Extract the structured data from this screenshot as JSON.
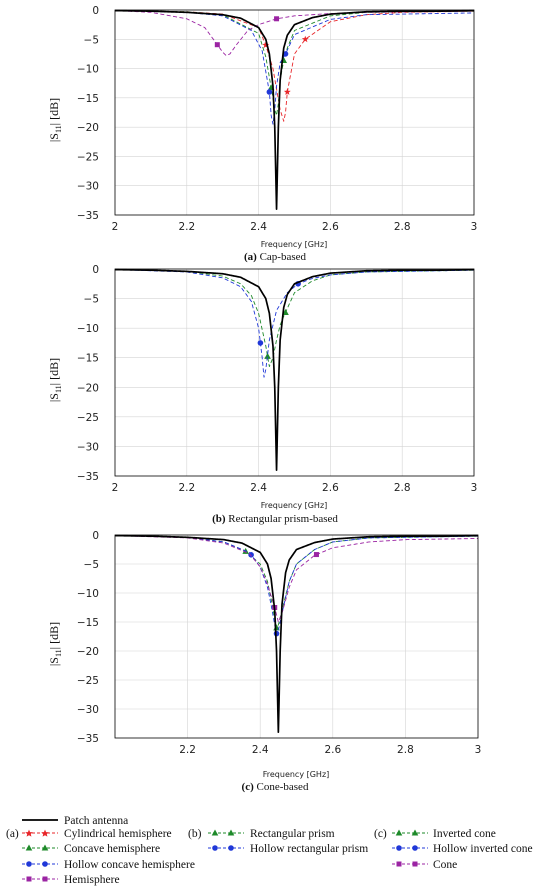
{
  "chart_data": [
    {
      "type": "line",
      "caption_letter": "(a)",
      "caption_text": "Cap-based",
      "xlabel": "Frequency [GHz]",
      "ylabel_base": "|S",
      "ylabel_sub": "11",
      "ylabel_tail": "| [dB]",
      "xlim": [
        2,
        3
      ],
      "ylim": [
        -35,
        0
      ],
      "xticks": [
        2,
        2.2,
        2.4,
        2.6,
        2.8,
        3
      ],
      "xtick_labels": [
        "2",
        "2.2",
        "2.4",
        "2.6",
        "2.8",
        "3"
      ],
      "yticks": [
        0,
        -5,
        -10,
        -15,
        -20,
        -25,
        -30,
        -35
      ],
      "ytick_labels": [
        "0",
        "−5",
        "−10",
        "−15",
        "−20",
        "−25",
        "−30",
        "−35"
      ],
      "grid": true,
      "series": [
        {
          "name": "Patch antenna",
          "color": "#000000",
          "style": "solid",
          "marker": "none",
          "x": [
            2,
            2.1,
            2.2,
            2.3,
            2.35,
            2.4,
            2.42,
            2.43,
            2.44,
            2.445,
            2.45,
            2.455,
            2.46,
            2.47,
            2.48,
            2.5,
            2.55,
            2.6,
            2.7,
            2.8,
            2.9,
            3
          ],
          "y": [
            -0.1,
            -0.2,
            -0.4,
            -0.8,
            -1.4,
            -3.0,
            -5.0,
            -7.5,
            -13.0,
            -20.0,
            -34.0,
            -20.0,
            -12.0,
            -6.5,
            -4.3,
            -2.5,
            -1.3,
            -0.7,
            -0.3,
            -0.2,
            -0.2,
            -0.1
          ]
        },
        {
          "name": "Cylindrical hemisphere",
          "color": "#e8262a",
          "style": "dashed",
          "marker": "star",
          "x": [
            2,
            2.2,
            2.3,
            2.4,
            2.42,
            2.44,
            2.45,
            2.46,
            2.47,
            2.475,
            2.48,
            2.5,
            2.53,
            2.6,
            2.7,
            2.8,
            3
          ],
          "y": [
            -0.1,
            -0.3,
            -0.7,
            -3.0,
            -6.0,
            -10.0,
            -13.5,
            -17.0,
            -19.0,
            -17.5,
            -14.0,
            -7.5,
            -5.0,
            -2.0,
            -0.8,
            -0.4,
            -0.2
          ],
          "marker_x": [
            2.42,
            2.48,
            2.53
          ]
        },
        {
          "name": "Concave hemisphere",
          "color": "#1e8a2a",
          "style": "dashed",
          "marker": "triangle",
          "x": [
            2,
            2.2,
            2.3,
            2.4,
            2.42,
            2.44,
            2.445,
            2.45,
            2.455,
            2.46,
            2.47,
            2.48,
            2.5,
            2.6,
            2.7,
            3
          ],
          "y": [
            -0.1,
            -0.3,
            -0.8,
            -4.0,
            -8.0,
            -15.0,
            -17.0,
            -18.0,
            -16.0,
            -12.0,
            -8.6,
            -6.5,
            -3.5,
            -1.0,
            -0.4,
            -0.2
          ],
          "marker_x": [
            2.435,
            2.47
          ]
        },
        {
          "name": "Hollow concave hemisphere",
          "color": "#2038d8",
          "style": "dashed",
          "marker": "circle",
          "x": [
            2,
            2.2,
            2.3,
            2.38,
            2.41,
            2.43,
            2.435,
            2.44,
            2.445,
            2.45,
            2.46,
            2.475,
            2.5,
            2.6,
            2.7,
            3
          ],
          "y": [
            -0.1,
            -0.4,
            -1.0,
            -3.5,
            -7.0,
            -14.0,
            -18.0,
            -19.5,
            -17.0,
            -13.0,
            -9.0,
            -7.5,
            -4.2,
            -1.6,
            -0.8,
            -0.5
          ],
          "marker_x": [
            2.43,
            2.475
          ]
        },
        {
          "name": "Hemisphere",
          "color": "#9b24a3",
          "style": "dashed",
          "marker": "square",
          "x": [
            2,
            2.1,
            2.2,
            2.25,
            2.28,
            2.3,
            2.31,
            2.32,
            2.34,
            2.37,
            2.4,
            2.45,
            2.5,
            2.6,
            2.7,
            3
          ],
          "y": [
            -0.1,
            -0.4,
            -1.5,
            -3.0,
            -5.5,
            -7.2,
            -7.8,
            -7.5,
            -5.8,
            -3.5,
            -2.5,
            -1.5,
            -1.0,
            -0.6,
            -0.4,
            -0.2
          ],
          "marker_x": [
            2.285,
            2.45
          ]
        }
      ]
    },
    {
      "type": "line",
      "caption_letter": "(b)",
      "caption_text": "Rectangular prism-based",
      "xlabel": "Frequency [GHz]",
      "ylabel_base": "|S",
      "ylabel_sub": "11",
      "ylabel_tail": "| [dB]",
      "xlim": [
        2,
        3
      ],
      "ylim": [
        -35,
        0
      ],
      "xticks": [
        2,
        2.2,
        2.4,
        2.6,
        2.8,
        3
      ],
      "xtick_labels": [
        "2",
        "2.2",
        "2.4",
        "2.6",
        "2.8",
        "3"
      ],
      "yticks": [
        0,
        -5,
        -10,
        -15,
        -20,
        -25,
        -30,
        -35
      ],
      "ytick_labels": [
        "0",
        "−5",
        "−10",
        "−15",
        "−20",
        "−25",
        "−30",
        "−35"
      ],
      "grid": true,
      "series": [
        {
          "name": "Patch antenna",
          "color": "#000000",
          "style": "solid",
          "marker": "none",
          "x": [
            2,
            2.1,
            2.2,
            2.3,
            2.35,
            2.4,
            2.42,
            2.43,
            2.44,
            2.445,
            2.45,
            2.455,
            2.46,
            2.47,
            2.48,
            2.5,
            2.55,
            2.6,
            2.7,
            2.8,
            2.9,
            3
          ],
          "y": [
            -0.1,
            -0.2,
            -0.4,
            -0.8,
            -1.4,
            -3.0,
            -5.0,
            -7.5,
            -13.0,
            -20.0,
            -34.0,
            -20.0,
            -12.0,
            -6.5,
            -4.3,
            -2.5,
            -1.3,
            -0.7,
            -0.3,
            -0.2,
            -0.2,
            -0.1
          ]
        },
        {
          "name": "Rectangular prism",
          "color": "#1e8a2a",
          "style": "dashed",
          "marker": "triangle",
          "x": [
            2,
            2.2,
            2.3,
            2.35,
            2.38,
            2.4,
            2.42,
            2.43,
            2.44,
            2.45,
            2.46,
            2.47,
            2.5,
            2.55,
            2.6,
            2.7,
            3
          ],
          "y": [
            -0.1,
            -0.4,
            -1.2,
            -2.5,
            -4.5,
            -7.5,
            -13.0,
            -16.5,
            -15.0,
            -12.0,
            -9.5,
            -8.0,
            -4.0,
            -2.0,
            -1.0,
            -0.5,
            -0.2
          ],
          "marker_x": [
            2.425,
            2.475
          ]
        },
        {
          "name": "Hollow rectangular prism",
          "color": "#2038d8",
          "style": "dashed",
          "marker": "circle",
          "x": [
            2,
            2.2,
            2.3,
            2.35,
            2.38,
            2.4,
            2.41,
            2.415,
            2.42,
            2.43,
            2.45,
            2.48,
            2.51,
            2.55,
            2.6,
            2.7,
            3
          ],
          "y": [
            -0.1,
            -0.5,
            -1.5,
            -3.0,
            -5.5,
            -10.0,
            -15.0,
            -18.3,
            -17.0,
            -12.0,
            -7.0,
            -4.0,
            -2.5,
            -1.6,
            -1.0,
            -0.5,
            -0.2
          ],
          "marker_x": [
            2.405,
            2.51
          ]
        }
      ]
    },
    {
      "type": "line",
      "caption_letter": "(c)",
      "caption_text": "Cone-based",
      "xlabel": "Frequency [GHz]",
      "ylabel_base": "|S",
      "ylabel_sub": "11",
      "ylabel_tail": "| [dB]",
      "xlim": [
        2,
        3
      ],
      "ylim": [
        -35,
        0
      ],
      "xticks": [
        2.2,
        2.4,
        2.6,
        2.8,
        3
      ],
      "xtick_labels": [
        "2.2",
        "2.4",
        "2.6",
        "2.8",
        "3"
      ],
      "yticks": [
        0,
        -5,
        -10,
        -15,
        -20,
        -25,
        -30,
        -35
      ],
      "ytick_labels": [
        "0",
        "−5",
        "−10",
        "−15",
        "−20",
        "−25",
        "−30",
        "−35"
      ],
      "grid": true,
      "series": [
        {
          "name": "Patch antenna",
          "color": "#000000",
          "style": "solid",
          "marker": "none",
          "x": [
            2,
            2.1,
            2.2,
            2.3,
            2.35,
            2.4,
            2.42,
            2.43,
            2.44,
            2.445,
            2.45,
            2.455,
            2.46,
            2.47,
            2.48,
            2.5,
            2.55,
            2.6,
            2.7,
            2.8,
            2.9,
            3
          ],
          "y": [
            -0.1,
            -0.2,
            -0.4,
            -0.8,
            -1.4,
            -3.0,
            -5.0,
            -7.5,
            -13.0,
            -20.0,
            -34.0,
            -20.0,
            -12.0,
            -6.5,
            -4.3,
            -2.5,
            -1.3,
            -0.7,
            -0.3,
            -0.2,
            -0.2,
            -0.1
          ]
        },
        {
          "name": "Inverted cone",
          "color": "#1e8a2a",
          "style": "dashed",
          "marker": "triangle",
          "x": [
            2,
            2.2,
            2.3,
            2.36,
            2.4,
            2.42,
            2.43,
            2.44,
            2.445,
            2.45,
            2.46,
            2.48,
            2.5,
            2.55,
            2.6,
            2.7,
            3
          ],
          "y": [
            -0.1,
            -0.4,
            -1.2,
            -2.8,
            -5.0,
            -8.0,
            -11.0,
            -14.5,
            -16.0,
            -15.5,
            -13.0,
            -8.0,
            -5.0,
            -2.5,
            -1.2,
            -0.5,
            -0.2
          ],
          "marker_x": [
            2.36,
            2.445
          ]
        },
        {
          "name": "Hollow inverted cone",
          "color": "#2038d8",
          "style": "dashed",
          "marker": "circle",
          "x": [
            2,
            2.2,
            2.3,
            2.37,
            2.4,
            2.42,
            2.43,
            2.44,
            2.445,
            2.45,
            2.46,
            2.48,
            2.5,
            2.55,
            2.6,
            2.7,
            3
          ],
          "y": [
            -0.1,
            -0.4,
            -1.2,
            -3.0,
            -5.5,
            -9.0,
            -12.0,
            -15.5,
            -17.0,
            -16.5,
            -13.5,
            -8.0,
            -5.0,
            -2.5,
            -1.2,
            -0.5,
            -0.2
          ],
          "marker_x": [
            2.375,
            2.445
          ]
        },
        {
          "name": "Cone",
          "color": "#9b24a3",
          "style": "dashed",
          "marker": "square",
          "x": [
            2,
            2.2,
            2.3,
            2.37,
            2.4,
            2.42,
            2.43,
            2.44,
            2.45,
            2.46,
            2.48,
            2.5,
            2.55,
            2.6,
            2.7,
            2.8,
            3
          ],
          "y": [
            -0.1,
            -0.5,
            -1.4,
            -3.2,
            -5.5,
            -8.5,
            -10.5,
            -12.5,
            -15.0,
            -13.5,
            -9.0,
            -6.0,
            -3.5,
            -2.2,
            -1.2,
            -0.8,
            -0.6
          ],
          "marker_x": [
            2.44,
            2.555
          ]
        }
      ]
    }
  ],
  "legend": {
    "patch": "Patch antenna",
    "group_a_label": "(a)",
    "group_b_label": "(b)",
    "group_c_label": "(c)",
    "col_a": [
      "Cylindrical hemisphere",
      "Concave hemisphere",
      "Hollow concave hemisphere",
      "Hemisphere"
    ],
    "col_b": [
      "Rectangular prism",
      "Hollow rectangular prism"
    ],
    "col_c": [
      "Inverted cone",
      "Hollow inverted cone",
      "Cone"
    ]
  },
  "colors": {
    "patch": "#000000",
    "red": "#e8262a",
    "green": "#1e8a2a",
    "blue": "#2038d8",
    "purple": "#9b24a3",
    "grid": "#d4d4d4"
  }
}
